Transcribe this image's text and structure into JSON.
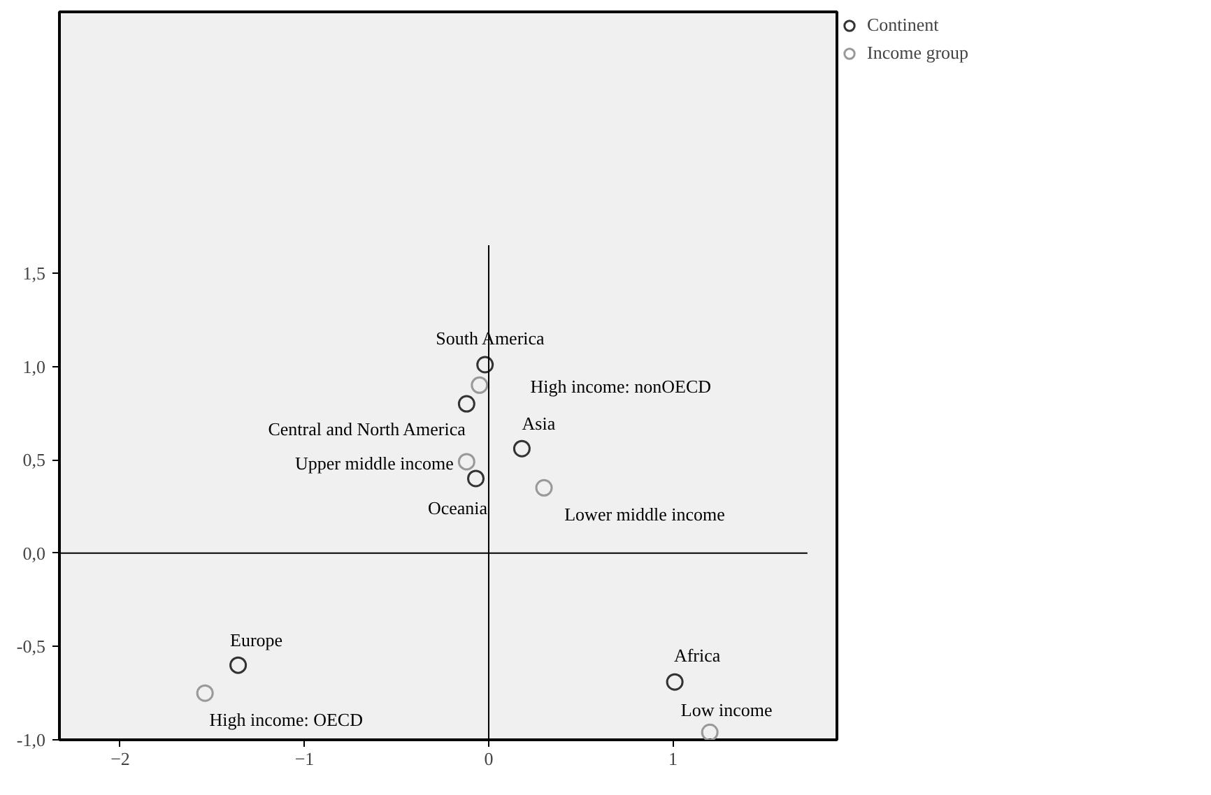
{
  "chart_data": {
    "type": "scatter",
    "series": [
      {
        "name": "Continent",
        "color": "#333333",
        "x": [
          -0.02,
          -0.12,
          0.18,
          -0.07,
          -1.36,
          1.01
        ],
        "values": [
          1.01,
          0.8,
          0.56,
          0.4,
          -0.6,
          -0.69
        ]
      },
      {
        "name": "Income group",
        "color": "#999999",
        "x": [
          -0.05,
          -0.12,
          0.3,
          -1.54,
          1.2
        ],
        "values": [
          0.9,
          0.49,
          0.35,
          -0.75,
          -0.96
        ]
      },
      {
        "type": "line",
        "marker": "none",
        "color": "#000000",
        "x": [
          0,
          0
        ],
        "values": [
          -1.0,
          1.65
        ]
      },
      {
        "type": "line",
        "marker": "none",
        "color": "#000000",
        "x": [
          -2.33,
          1.73
        ],
        "values": [
          0,
          0
        ]
      }
    ],
    "annotations": [
      {
        "text": "South America",
        "x": -0.02,
        "y": 1.01
      },
      {
        "text": "High income: nonOECD",
        "x": -0.05,
        "y": 0.9
      },
      {
        "text": "Central and North America",
        "x": -0.12,
        "y": 0.8
      },
      {
        "text": "Asia",
        "x": 0.18,
        "y": 0.56
      },
      {
        "text": "Upper middle income",
        "x": -0.12,
        "y": 0.49
      },
      {
        "text": "Oceania",
        "x": -0.07,
        "y": 0.4
      },
      {
        "text": "Lower middle income",
        "x": 0.3,
        "y": 0.35
      },
      {
        "text": "Europe",
        "x": -1.36,
        "y": -0.6
      },
      {
        "text": "High income: OECD",
        "x": -1.54,
        "y": -0.75
      },
      {
        "text": "Africa",
        "x": 1.01,
        "y": -0.69
      },
      {
        "text": "Low income",
        "x": 1.2,
        "y": -0.96
      }
    ],
    "xlim": [
      -2.33,
      1.89
    ],
    "ylim": [
      -1.0,
      2.9
    ],
    "xticks": [
      -2,
      -1,
      0,
      1
    ],
    "yticks": [
      {
        "value": -1.0,
        "label": "-1,0"
      },
      {
        "value": -0.5,
        "label": "-0,5"
      },
      {
        "value": 0,
        "label": "0,0"
      },
      {
        "value": 0.5,
        "label": "0,5"
      },
      {
        "value": 1.0,
        "label": "1,0"
      },
      {
        "value": 1.5,
        "label": "1,5"
      }
    ],
    "marker": "circle",
    "grid": false,
    "legend": "top right"
  }
}
